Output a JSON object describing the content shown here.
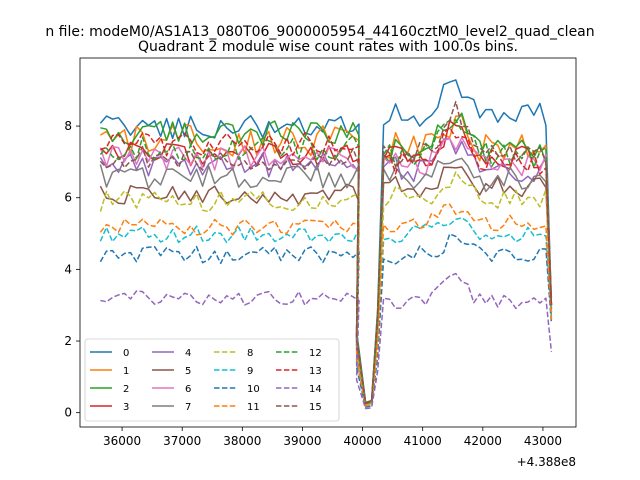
{
  "header": {
    "suptitle": "n file: modeM0/AS1A13_080T06_9000005954_44160cztM0_level2_quad_clean"
  },
  "chart_data": {
    "type": "line",
    "title": "Quadrant 2 module wise count rates with 100.0s bins.",
    "xlabel": "",
    "ylabel": "",
    "x_offset_label": "+4.388e8",
    "xlim": [
      35300,
      43550
    ],
    "ylim": [
      -0.4,
      9.9
    ],
    "x_ticks": [
      36000,
      37000,
      38000,
      39000,
      40000,
      41000,
      42000,
      43000
    ],
    "y_ticks": [
      0,
      2,
      4,
      6,
      8
    ],
    "x_tick_labels": [
      "36000",
      "37000",
      "38000",
      "39000",
      "40000",
      "41000",
      "42000",
      "43000"
    ],
    "y_tick_labels": [
      "0",
      "2",
      "4",
      "6",
      "8"
    ],
    "grid": false,
    "legend_position": "lower-left",
    "legend_columns": 4,
    "x_start": 35640,
    "x_step": 100,
    "gap_index": 44,
    "dip_points": [
      [
        39900,
        2.0
      ],
      [
        40050,
        0.25
      ],
      [
        40150,
        0.3
      ],
      [
        40250,
        2.5
      ]
    ],
    "series": [
      {
        "name": "0",
        "color": "#1f77b4",
        "dash": "solid",
        "base": 8.0,
        "amp": 0.35,
        "after": 8.3,
        "end": 3.0,
        "bump": 1.1
      },
      {
        "name": "1",
        "color": "#ff7f0e",
        "dash": "solid",
        "base": 7.6,
        "amp": 0.45,
        "after": 7.4,
        "end": 2.6,
        "bump": 0.6
      },
      {
        "name": "2",
        "color": "#2ca02c",
        "dash": "solid",
        "base": 7.8,
        "amp": 0.35,
        "after": 7.3,
        "end": 3.2,
        "bump": 1.0
      },
      {
        "name": "3",
        "color": "#d62728",
        "dash": "solid",
        "base": 7.2,
        "amp": 0.35,
        "after": 7.1,
        "end": 3.0,
        "bump": 0.8
      },
      {
        "name": "4",
        "color": "#9467bd",
        "dash": "solid",
        "base": 6.9,
        "amp": 0.35,
        "after": 6.8,
        "end": 2.9,
        "bump": 0.7
      },
      {
        "name": "5",
        "color": "#8c564b",
        "dash": "solid",
        "base": 6.1,
        "amp": 0.3,
        "after": 6.3,
        "end": 2.8,
        "bump": 0.5
      },
      {
        "name": "6",
        "color": "#e377c2",
        "dash": "solid",
        "base": 7.1,
        "amp": 0.35,
        "after": 6.9,
        "end": 3.0,
        "bump": 0.8
      },
      {
        "name": "7",
        "color": "#7f7f7f",
        "dash": "solid",
        "base": 6.6,
        "amp": 0.35,
        "after": 6.5,
        "end": 2.9,
        "bump": 0.6
      },
      {
        "name": "8",
        "color": "#bcbd22",
        "dash": "dashed",
        "base": 5.9,
        "amp": 0.3,
        "after": 6.0,
        "end": 2.8,
        "bump": 0.5
      },
      {
        "name": "9",
        "color": "#17becf",
        "dash": "dashed",
        "base": 5.0,
        "amp": 0.25,
        "after": 5.0,
        "end": 2.7,
        "bump": 0.5
      },
      {
        "name": "10",
        "color": "#1f77b4",
        "dash": "dashed",
        "base": 4.4,
        "amp": 0.25,
        "after": 4.4,
        "end": 2.5,
        "bump": 0.4
      },
      {
        "name": "11",
        "color": "#ff7f0e",
        "dash": "dashed",
        "base": 5.2,
        "amp": 0.25,
        "after": 5.3,
        "end": 2.6,
        "bump": 0.4
      },
      {
        "name": "12",
        "color": "#2ca02c",
        "dash": "dashed",
        "base": 7.4,
        "amp": 0.35,
        "after": 7.2,
        "end": 3.0,
        "bump": 0.9
      },
      {
        "name": "13",
        "color": "#d62728",
        "dash": "dashed",
        "base": 7.5,
        "amp": 0.35,
        "after": 7.0,
        "end": 3.0,
        "bump": 1.0
      },
      {
        "name": "14",
        "color": "#9467bd",
        "dash": "dashed",
        "base": 3.2,
        "amp": 0.2,
        "after": 3.1,
        "end": 1.7,
        "bump": 0.8
      },
      {
        "name": "15",
        "color": "#8c564b",
        "dash": "dashed",
        "base": 7.1,
        "amp": 0.35,
        "after": 7.2,
        "end": 3.0,
        "bump": 1.2
      }
    ]
  }
}
